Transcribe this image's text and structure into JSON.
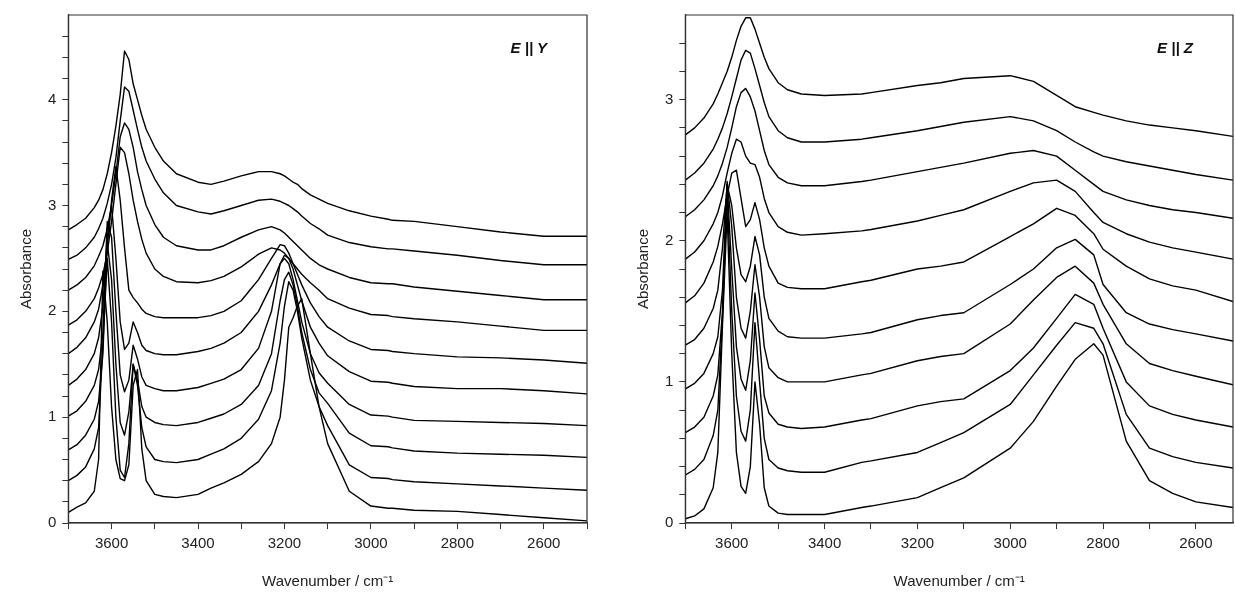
{
  "chart_data": [
    {
      "type": "line",
      "xlabel": "Wavenumber / cm⁻¹",
      "ylabel": "Absorbance",
      "annotations": [
        "E || Y"
      ],
      "xlim": [
        3700,
        2500
      ],
      "ylim": [
        0,
        4.8
      ],
      "xticks": [
        {
          "value": 3700,
          "label": null
        },
        3600,
        {
          "value": 3500,
          "label": null
        },
        3400,
        {
          "value": 3300,
          "label": null
        },
        3200,
        {
          "value": 3100,
          "label": null
        },
        3000,
        {
          "value": 2900,
          "label": null
        },
        2800,
        {
          "value": 2700,
          "label": null
        },
        2600,
        {
          "value": 2500,
          "label": null
        }
      ],
      "yticks": [
        0,
        {
          "value": 0.2,
          "label": null
        },
        {
          "value": 0.4,
          "label": null
        },
        {
          "value": 0.6,
          "label": null
        },
        {
          "value": 0.8,
          "label": null
        },
        1,
        {
          "value": 1.2,
          "label": null
        },
        {
          "value": 1.4,
          "label": null
        },
        {
          "value": 1.6,
          "label": null
        },
        {
          "value": 1.8,
          "label": null
        },
        2,
        {
          "value": 2.2,
          "label": null
        },
        {
          "value": 2.4,
          "label": null
        },
        {
          "value": 2.6,
          "label": null
        },
        {
          "value": 2.8,
          "label": null
        },
        3,
        {
          "value": 3.2,
          "label": null
        },
        {
          "value": 3.4,
          "label": null
        },
        {
          "value": 3.6,
          "label": null
        },
        {
          "value": 3.8,
          "label": null
        },
        4,
        {
          "value": 4.2,
          "label": null
        },
        {
          "value": 4.4,
          "label": null
        },
        {
          "value": 4.6,
          "label": null
        }
      ],
      "x": [
        3700,
        3680,
        3660,
        3640,
        3630,
        3620,
        3610,
        3600,
        3590,
        3580,
        3570,
        3560,
        3550,
        3540,
        3530,
        3520,
        3500,
        3480,
        3450,
        3400,
        3370,
        3340,
        3300,
        3260,
        3230,
        3210,
        3200,
        3190,
        3180,
        3170,
        3160,
        3140,
        3120,
        3100,
        3050,
        3000,
        2960,
        2950,
        2900,
        2800,
        2700,
        2600,
        2500
      ],
      "series": [
        {
          "color": "#000000",
          "values": [
            2.77,
            2.82,
            2.88,
            2.98,
            3.05,
            3.15,
            3.3,
            3.5,
            3.75,
            4.05,
            4.46,
            4.38,
            4.15,
            4.0,
            3.85,
            3.72,
            3.55,
            3.42,
            3.3,
            3.22,
            3.2,
            3.23,
            3.28,
            3.32,
            3.32,
            3.3,
            3.28,
            3.25,
            3.22,
            3.2,
            3.16,
            3.1,
            3.06,
            3.02,
            2.95,
            2.9,
            2.87,
            2.86,
            2.85,
            2.8,
            2.75,
            2.71,
            2.71
          ]
        },
        {
          "color": "#000000",
          "values": [
            2.49,
            2.53,
            2.6,
            2.7,
            2.78,
            2.88,
            3.02,
            3.2,
            3.45,
            3.8,
            4.12,
            4.08,
            3.9,
            3.72,
            3.55,
            3.42,
            3.25,
            3.12,
            3.0,
            2.94,
            2.92,
            2.95,
            3.0,
            3.05,
            3.06,
            3.04,
            3.02,
            3.0,
            2.97,
            2.94,
            2.9,
            2.83,
            2.78,
            2.72,
            2.65,
            2.61,
            2.59,
            2.59,
            2.57,
            2.53,
            2.48,
            2.44,
            2.44
          ]
        },
        {
          "color": "#000000",
          "values": [
            2.2,
            2.25,
            2.32,
            2.43,
            2.52,
            2.62,
            2.78,
            3.0,
            3.3,
            3.65,
            3.78,
            3.72,
            3.55,
            3.32,
            3.15,
            3.0,
            2.82,
            2.7,
            2.62,
            2.58,
            2.58,
            2.62,
            2.7,
            2.77,
            2.8,
            2.77,
            2.74,
            2.7,
            2.66,
            2.62,
            2.58,
            2.5,
            2.44,
            2.4,
            2.32,
            2.27,
            2.26,
            2.26,
            2.23,
            2.19,
            2.15,
            2.11,
            2.11
          ]
        },
        {
          "color": "#000000",
          "values": [
            1.87,
            1.92,
            2.0,
            2.12,
            2.22,
            2.35,
            2.55,
            2.85,
            3.2,
            3.55,
            3.5,
            3.3,
            3.05,
            2.85,
            2.68,
            2.55,
            2.4,
            2.33,
            2.28,
            2.27,
            2.29,
            2.33,
            2.42,
            2.54,
            2.6,
            2.58,
            2.55,
            2.5,
            2.45,
            2.4,
            2.35,
            2.27,
            2.2,
            2.12,
            2.03,
            1.97,
            1.96,
            1.95,
            1.93,
            1.9,
            1.86,
            1.82,
            1.82
          ]
        },
        {
          "color": "#000000",
          "values": [
            1.6,
            1.66,
            1.75,
            1.9,
            2.02,
            2.25,
            2.6,
            3.05,
            3.37,
            3.05,
            2.6,
            2.2,
            2.13,
            2.08,
            2.02,
            1.98,
            1.95,
            1.94,
            1.94,
            1.94,
            1.96,
            2.0,
            2.1,
            2.3,
            2.5,
            2.63,
            2.62,
            2.55,
            2.45,
            2.35,
            2.25,
            2.08,
            1.95,
            1.85,
            1.72,
            1.64,
            1.63,
            1.62,
            1.6,
            1.57,
            1.56,
            1.54,
            1.51
          ]
        },
        {
          "color": "#000000",
          "values": [
            1.3,
            1.36,
            1.45,
            1.6,
            1.75,
            2.05,
            2.7,
            3.0,
            2.5,
            1.9,
            1.64,
            1.7,
            1.9,
            1.8,
            1.68,
            1.63,
            1.6,
            1.59,
            1.59,
            1.62,
            1.65,
            1.7,
            1.8,
            2.0,
            2.25,
            2.45,
            2.53,
            2.5,
            2.4,
            2.25,
            2.1,
            1.85,
            1.7,
            1.58,
            1.43,
            1.34,
            1.33,
            1.32,
            1.29,
            1.27,
            1.27,
            1.25,
            1.22
          ]
        },
        {
          "color": "#000000",
          "values": [
            1.01,
            1.06,
            1.15,
            1.3,
            1.45,
            1.8,
            2.85,
            2.7,
            2.0,
            1.4,
            1.24,
            1.35,
            1.68,
            1.55,
            1.38,
            1.3,
            1.27,
            1.25,
            1.25,
            1.28,
            1.32,
            1.36,
            1.45,
            1.65,
            2.0,
            2.45,
            2.5,
            2.45,
            2.3,
            2.1,
            1.9,
            1.6,
            1.42,
            1.32,
            1.12,
            1.02,
            1.01,
            1.0,
            0.97,
            0.96,
            0.95,
            0.94,
            0.92
          ]
        },
        {
          "color": "#000000",
          "values": [
            0.69,
            0.74,
            0.83,
            0.98,
            1.15,
            1.6,
            2.65,
            2.3,
            1.5,
            0.95,
            0.83,
            1.05,
            1.5,
            1.35,
            1.1,
            1.0,
            0.95,
            0.93,
            0.92,
            0.95,
            0.99,
            1.03,
            1.12,
            1.3,
            1.6,
            2.1,
            2.3,
            2.37,
            2.25,
            2.05,
            1.8,
            1.45,
            1.23,
            1.13,
            0.85,
            0.73,
            0.72,
            0.71,
            0.68,
            0.66,
            0.65,
            0.64,
            0.62
          ]
        },
        {
          "color": "#000000",
          "values": [
            0.4,
            0.45,
            0.53,
            0.7,
            0.9,
            1.7,
            2.5,
            1.9,
            1.0,
            0.5,
            0.43,
            0.75,
            1.5,
            1.3,
            0.9,
            0.72,
            0.6,
            0.58,
            0.57,
            0.6,
            0.65,
            0.7,
            0.8,
            0.98,
            1.25,
            1.7,
            2.05,
            2.28,
            2.2,
            2.0,
            1.75,
            1.35,
            1.1,
            0.92,
            0.55,
            0.43,
            0.42,
            0.41,
            0.39,
            0.37,
            0.35,
            0.33,
            0.31
          ]
        },
        {
          "color": "#000000",
          "values": [
            0.1,
            0.15,
            0.19,
            0.3,
            0.6,
            2.38,
            1.9,
            1.1,
            0.6,
            0.42,
            0.4,
            0.55,
            1.3,
            1.45,
            0.7,
            0.4,
            0.27,
            0.25,
            0.24,
            0.27,
            0.33,
            0.38,
            0.46,
            0.58,
            0.75,
            1.0,
            1.35,
            1.85,
            1.94,
            2.05,
            2.12,
            1.6,
            1.1,
            0.75,
            0.3,
            0.16,
            0.14,
            0.14,
            0.12,
            0.11,
            0.08,
            0.05,
            0.02
          ]
        }
      ]
    },
    {
      "type": "line",
      "xlabel": "Wavenumber / cm⁻¹",
      "ylabel": "Absorbance",
      "annotations": [
        "E || Z"
      ],
      "xlim": [
        3700,
        2520
      ],
      "ylim": [
        0,
        3.6
      ],
      "xticks": [
        {
          "value": 3700,
          "label": null
        },
        3600,
        {
          "value": 3500,
          "label": null
        },
        3400,
        {
          "value": 3300,
          "label": null
        },
        3200,
        {
          "value": 3100,
          "label": null
        },
        3000,
        {
          "value": 2900,
          "label": null
        },
        2800,
        {
          "value": 2700,
          "label": null
        },
        2600
      ],
      "yticks": [
        0,
        {
          "value": 0.2,
          "label": null
        },
        {
          "value": 0.4,
          "label": null
        },
        {
          "value": 0.6,
          "label": null
        },
        {
          "value": 0.8,
          "label": null
        },
        1,
        {
          "value": 1.2,
          "label": null
        },
        {
          "value": 1.4,
          "label": null
        },
        {
          "value": 1.6,
          "label": null
        },
        {
          "value": 1.8,
          "label": null
        },
        2,
        {
          "value": 2.2,
          "label": null
        },
        {
          "value": 2.4,
          "label": null
        },
        {
          "value": 2.6,
          "label": null
        },
        {
          "value": 2.8,
          "label": null
        },
        3,
        {
          "value": 3.2,
          "label": null
        },
        {
          "value": 3.4,
          "label": null
        }
      ],
      "x": [
        3700,
        3680,
        3660,
        3640,
        3630,
        3620,
        3610,
        3600,
        3590,
        3580,
        3570,
        3560,
        3550,
        3540,
        3530,
        3520,
        3500,
        3480,
        3450,
        3400,
        3320,
        3300,
        3200,
        3150,
        3100,
        3000,
        2950,
        2900,
        2860,
        2820,
        2800,
        2750,
        2700,
        2650,
        2600,
        2520
      ],
      "series": [
        {
          "color": "#000000",
          "values": [
            2.75,
            2.8,
            2.87,
            2.97,
            3.04,
            3.12,
            3.2,
            3.3,
            3.42,
            3.52,
            3.58,
            3.58,
            3.5,
            3.4,
            3.3,
            3.22,
            3.12,
            3.07,
            3.04,
            3.03,
            3.04,
            3.05,
            3.1,
            3.12,
            3.15,
            3.17,
            3.13,
            3.03,
            2.95,
            2.91,
            2.89,
            2.85,
            2.82,
            2.8,
            2.78,
            2.74
          ]
        },
        {
          "color": "#000000",
          "values": [
            2.43,
            2.48,
            2.55,
            2.65,
            2.72,
            2.8,
            2.9,
            3.02,
            3.15,
            3.28,
            3.35,
            3.33,
            3.22,
            3.1,
            2.98,
            2.88,
            2.78,
            2.73,
            2.7,
            2.7,
            2.72,
            2.73,
            2.78,
            2.81,
            2.84,
            2.88,
            2.85,
            2.78,
            2.7,
            2.63,
            2.6,
            2.56,
            2.53,
            2.5,
            2.47,
            2.43
          ]
        },
        {
          "color": "#000000",
          "values": [
            2.17,
            2.22,
            2.29,
            2.39,
            2.46,
            2.55,
            2.66,
            2.8,
            2.95,
            3.05,
            3.08,
            3.02,
            2.92,
            2.78,
            2.64,
            2.54,
            2.45,
            2.41,
            2.39,
            2.39,
            2.42,
            2.43,
            2.49,
            2.52,
            2.55,
            2.62,
            2.64,
            2.6,
            2.5,
            2.4,
            2.35,
            2.29,
            2.25,
            2.22,
            2.2,
            2.16
          ]
        },
        {
          "color": "#000000",
          "values": [
            1.87,
            1.92,
            2.0,
            2.12,
            2.2,
            2.32,
            2.48,
            2.62,
            2.72,
            2.7,
            2.6,
            2.55,
            2.54,
            2.45,
            2.3,
            2.2,
            2.1,
            2.06,
            2.04,
            2.05,
            2.07,
            2.08,
            2.14,
            2.18,
            2.22,
            2.35,
            2.41,
            2.43,
            2.35,
            2.2,
            2.13,
            2.05,
            1.99,
            1.95,
            1.92,
            1.87
          ]
        },
        {
          "color": "#000000",
          "values": [
            1.56,
            1.61,
            1.7,
            1.85,
            1.96,
            2.12,
            2.32,
            2.48,
            2.5,
            2.3,
            2.1,
            2.15,
            2.27,
            2.15,
            1.95,
            1.82,
            1.7,
            1.67,
            1.66,
            1.66,
            1.71,
            1.72,
            1.8,
            1.82,
            1.85,
            2.03,
            2.12,
            2.23,
            2.18,
            2.05,
            1.94,
            1.82,
            1.73,
            1.68,
            1.65,
            1.57
          ]
        },
        {
          "color": "#000000",
          "values": [
            1.26,
            1.3,
            1.38,
            1.52,
            1.65,
            1.95,
            2.4,
            2.25,
            1.95,
            1.76,
            1.71,
            1.82,
            2.03,
            1.9,
            1.6,
            1.45,
            1.36,
            1.32,
            1.31,
            1.31,
            1.34,
            1.35,
            1.44,
            1.47,
            1.49,
            1.69,
            1.8,
            1.95,
            2.01,
            1.9,
            1.69,
            1.49,
            1.41,
            1.37,
            1.34,
            1.29
          ]
        },
        {
          "color": "#000000",
          "values": [
            0.95,
            0.99,
            1.06,
            1.2,
            1.32,
            1.65,
            2.42,
            2.1,
            1.6,
            1.38,
            1.31,
            1.5,
            1.83,
            1.6,
            1.25,
            1.1,
            1.03,
            1.0,
            1.0,
            1.0,
            1.05,
            1.06,
            1.15,
            1.18,
            1.2,
            1.41,
            1.58,
            1.74,
            1.82,
            1.7,
            1.55,
            1.27,
            1.13,
            1.08,
            1.04,
            0.98
          ]
        },
        {
          "color": "#000000",
          "values": [
            0.64,
            0.68,
            0.75,
            0.9,
            1.05,
            1.5,
            2.4,
            1.8,
            1.25,
            1.02,
            0.94,
            1.15,
            1.63,
            1.3,
            0.9,
            0.78,
            0.7,
            0.68,
            0.67,
            0.68,
            0.73,
            0.74,
            0.83,
            0.86,
            0.88,
            1.08,
            1.24,
            1.45,
            1.62,
            1.55,
            1.38,
            1.0,
            0.83,
            0.77,
            0.73,
            0.68
          ]
        },
        {
          "color": "#000000",
          "values": [
            0.34,
            0.38,
            0.45,
            0.62,
            0.8,
            1.45,
            2.35,
            1.5,
            0.9,
            0.65,
            0.58,
            0.8,
            1.42,
            1.0,
            0.6,
            0.45,
            0.39,
            0.37,
            0.36,
            0.36,
            0.43,
            0.44,
            0.5,
            0.57,
            0.64,
            0.84,
            1.05,
            1.26,
            1.42,
            1.38,
            1.27,
            0.77,
            0.53,
            0.47,
            0.43,
            0.39
          ]
        },
        {
          "color": "#000000",
          "values": [
            0.03,
            0.05,
            0.1,
            0.25,
            0.5,
            1.4,
            2.2,
            1.2,
            0.5,
            0.26,
            0.21,
            0.4,
            1.0,
            0.7,
            0.25,
            0.12,
            0.07,
            0.06,
            0.06,
            0.06,
            0.11,
            0.12,
            0.18,
            0.25,
            0.32,
            0.53,
            0.72,
            0.97,
            1.16,
            1.27,
            1.19,
            0.58,
            0.3,
            0.21,
            0.15,
            0.11
          ]
        }
      ]
    }
  ]
}
